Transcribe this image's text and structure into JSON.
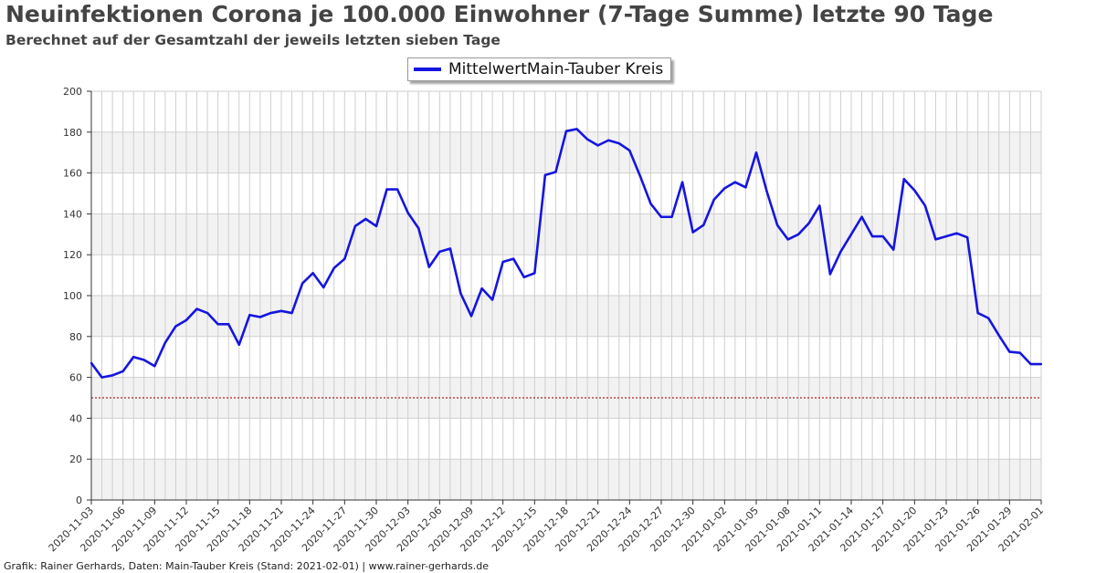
{
  "title": "Neuinfektionen Corona je 100.000 Einwohner (7-Tage Summe) letzte 90 Tage",
  "subtitle": "Berechnet auf der Gesamtzahl der jeweils letzten sieben Tage",
  "footer": "Grafik: Rainer Gerhards, Daten: Main-Tauber Kreis (Stand: 2021-02-01) | www.rainer-gerhards.de",
  "legend": {
    "label": "MittelwertMain-Tauber Kreis"
  },
  "colors": {
    "series": "#1515e0",
    "threshold": "#b22222",
    "band": "#f2f2f2",
    "grid": "#cfcfcf"
  },
  "chart_data": {
    "type": "line",
    "x_start": "2020-11-03",
    "ylim": [
      0,
      200
    ],
    "yticks": [
      0,
      20,
      40,
      60,
      80,
      100,
      120,
      140,
      160,
      180,
      200
    ],
    "xtick_labels": [
      "2020-11-03",
      "2020-11-06",
      "2020-11-09",
      "2020-11-12",
      "2020-11-15",
      "2020-11-18",
      "2020-11-21",
      "2020-11-24",
      "2020-11-27",
      "2020-11-30",
      "2020-12-03",
      "2020-12-06",
      "2020-12-09",
      "2020-12-12",
      "2020-12-15",
      "2020-12-18",
      "2020-12-21",
      "2020-12-24",
      "2020-12-27",
      "2020-12-30",
      "2021-01-02",
      "2021-01-05",
      "2021-01-08",
      "2021-01-11",
      "2021-01-14",
      "2021-01-17",
      "2021-01-20",
      "2021-01-23",
      "2021-01-26",
      "2021-01-29",
      "2021-02-01"
    ],
    "reference_line": 50,
    "grid": true,
    "legend_position": "top-center",
    "series": [
      {
        "name": "MittelwertMain-Tauber Kreis",
        "values": [
          67,
          60,
          61,
          63,
          70,
          68.5,
          65.5,
          77,
          85,
          88,
          93.5,
          91.5,
          86,
          86,
          76,
          90.5,
          89.5,
          91.5,
          92.5,
          91.5,
          106,
          111,
          104,
          113.5,
          118,
          134,
          137.5,
          134,
          152,
          152,
          140.5,
          133,
          114,
          121.5,
          123,
          101,
          90,
          103.5,
          98,
          116.5,
          118,
          109,
          111,
          159,
          160.5,
          180.5,
          181.5,
          176.5,
          173.5,
          176,
          174.5,
          171,
          158.5,
          145,
          138.5,
          138.5,
          155.5,
          131,
          134.5,
          147,
          152.5,
          155.5,
          153,
          170,
          151,
          134.5,
          127.5,
          130,
          135.5,
          144,
          110.5,
          121.5,
          130,
          138.5,
          129,
          129,
          122.5,
          157,
          151.5,
          144,
          127.5,
          129,
          130.5,
          128.5,
          91.5,
          89,
          80.5,
          72.5,
          72,
          66.5,
          66.5
        ]
      }
    ]
  }
}
